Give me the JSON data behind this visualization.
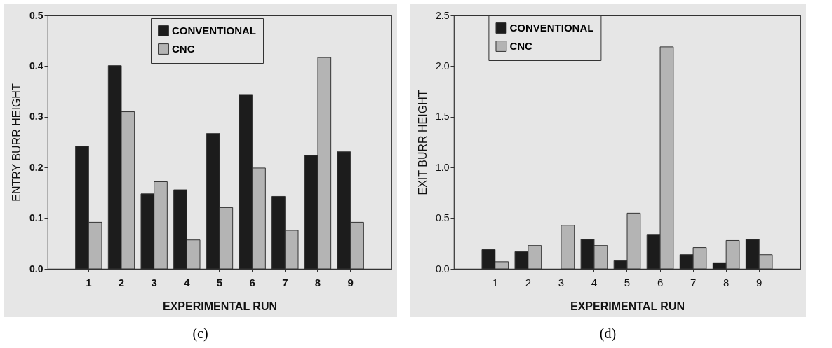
{
  "chart_data": [
    {
      "type": "bar",
      "xlabel": "EXPERIMENTAL RUN",
      "ylabel": "ENTRY BURR HEIGHT",
      "categories": [
        "1",
        "2",
        "3",
        "4",
        "5",
        "6",
        "7",
        "8",
        "9"
      ],
      "series": [
        {
          "name": "CONVENTIONAL",
          "color": "#1c1c1c",
          "values": [
            0.242,
            0.401,
            0.148,
            0.156,
            0.267,
            0.344,
            0.143,
            0.224,
            0.231
          ]
        },
        {
          "name": "CNC",
          "color": "#b4b4b4",
          "values": [
            0.092,
            0.31,
            0.172,
            0.057,
            0.121,
            0.199,
            0.076,
            0.417,
            0.092
          ]
        }
      ],
      "ylim": [
        0,
        0.5
      ],
      "yticks": [
        {
          "value": 0,
          "label": "0.0"
        },
        0.1,
        0.2,
        0.3,
        0.4,
        0.5
      ],
      "grid": false,
      "legend": "top",
      "annotations": [
        "(c)"
      ]
    },
    {
      "type": "bar",
      "xlabel": "EXPERIMENTAL RUN",
      "ylabel": "EXIT BURR HEIGHT",
      "categories": [
        "1",
        "2",
        "3",
        "4",
        "5",
        "6",
        "7",
        "8",
        "9"
      ],
      "series": [
        {
          "name": "CONVENTIONAL",
          "color": "#1c1c1c",
          "values": [
            0.19,
            0.17,
            null,
            0.29,
            0.08,
            0.34,
            0.14,
            0.06,
            0.29
          ]
        },
        {
          "name": "CNC",
          "color": "#b4b4b4",
          "values": [
            0.07,
            0.23,
            0.43,
            0.23,
            0.55,
            2.19,
            0.21,
            0.28,
            0.14
          ]
        }
      ],
      "ylim": [
        0,
        2.5
      ],
      "yticks": [
        {
          "value": 0,
          "label": "0.0"
        },
        0.5,
        {
          "value": 1,
          "label": "1.0"
        },
        1.5,
        {
          "value": 2,
          "label": "2.0"
        },
        2.5
      ],
      "grid": false,
      "legend": "top left",
      "annotations": [
        "(d)"
      ]
    }
  ]
}
